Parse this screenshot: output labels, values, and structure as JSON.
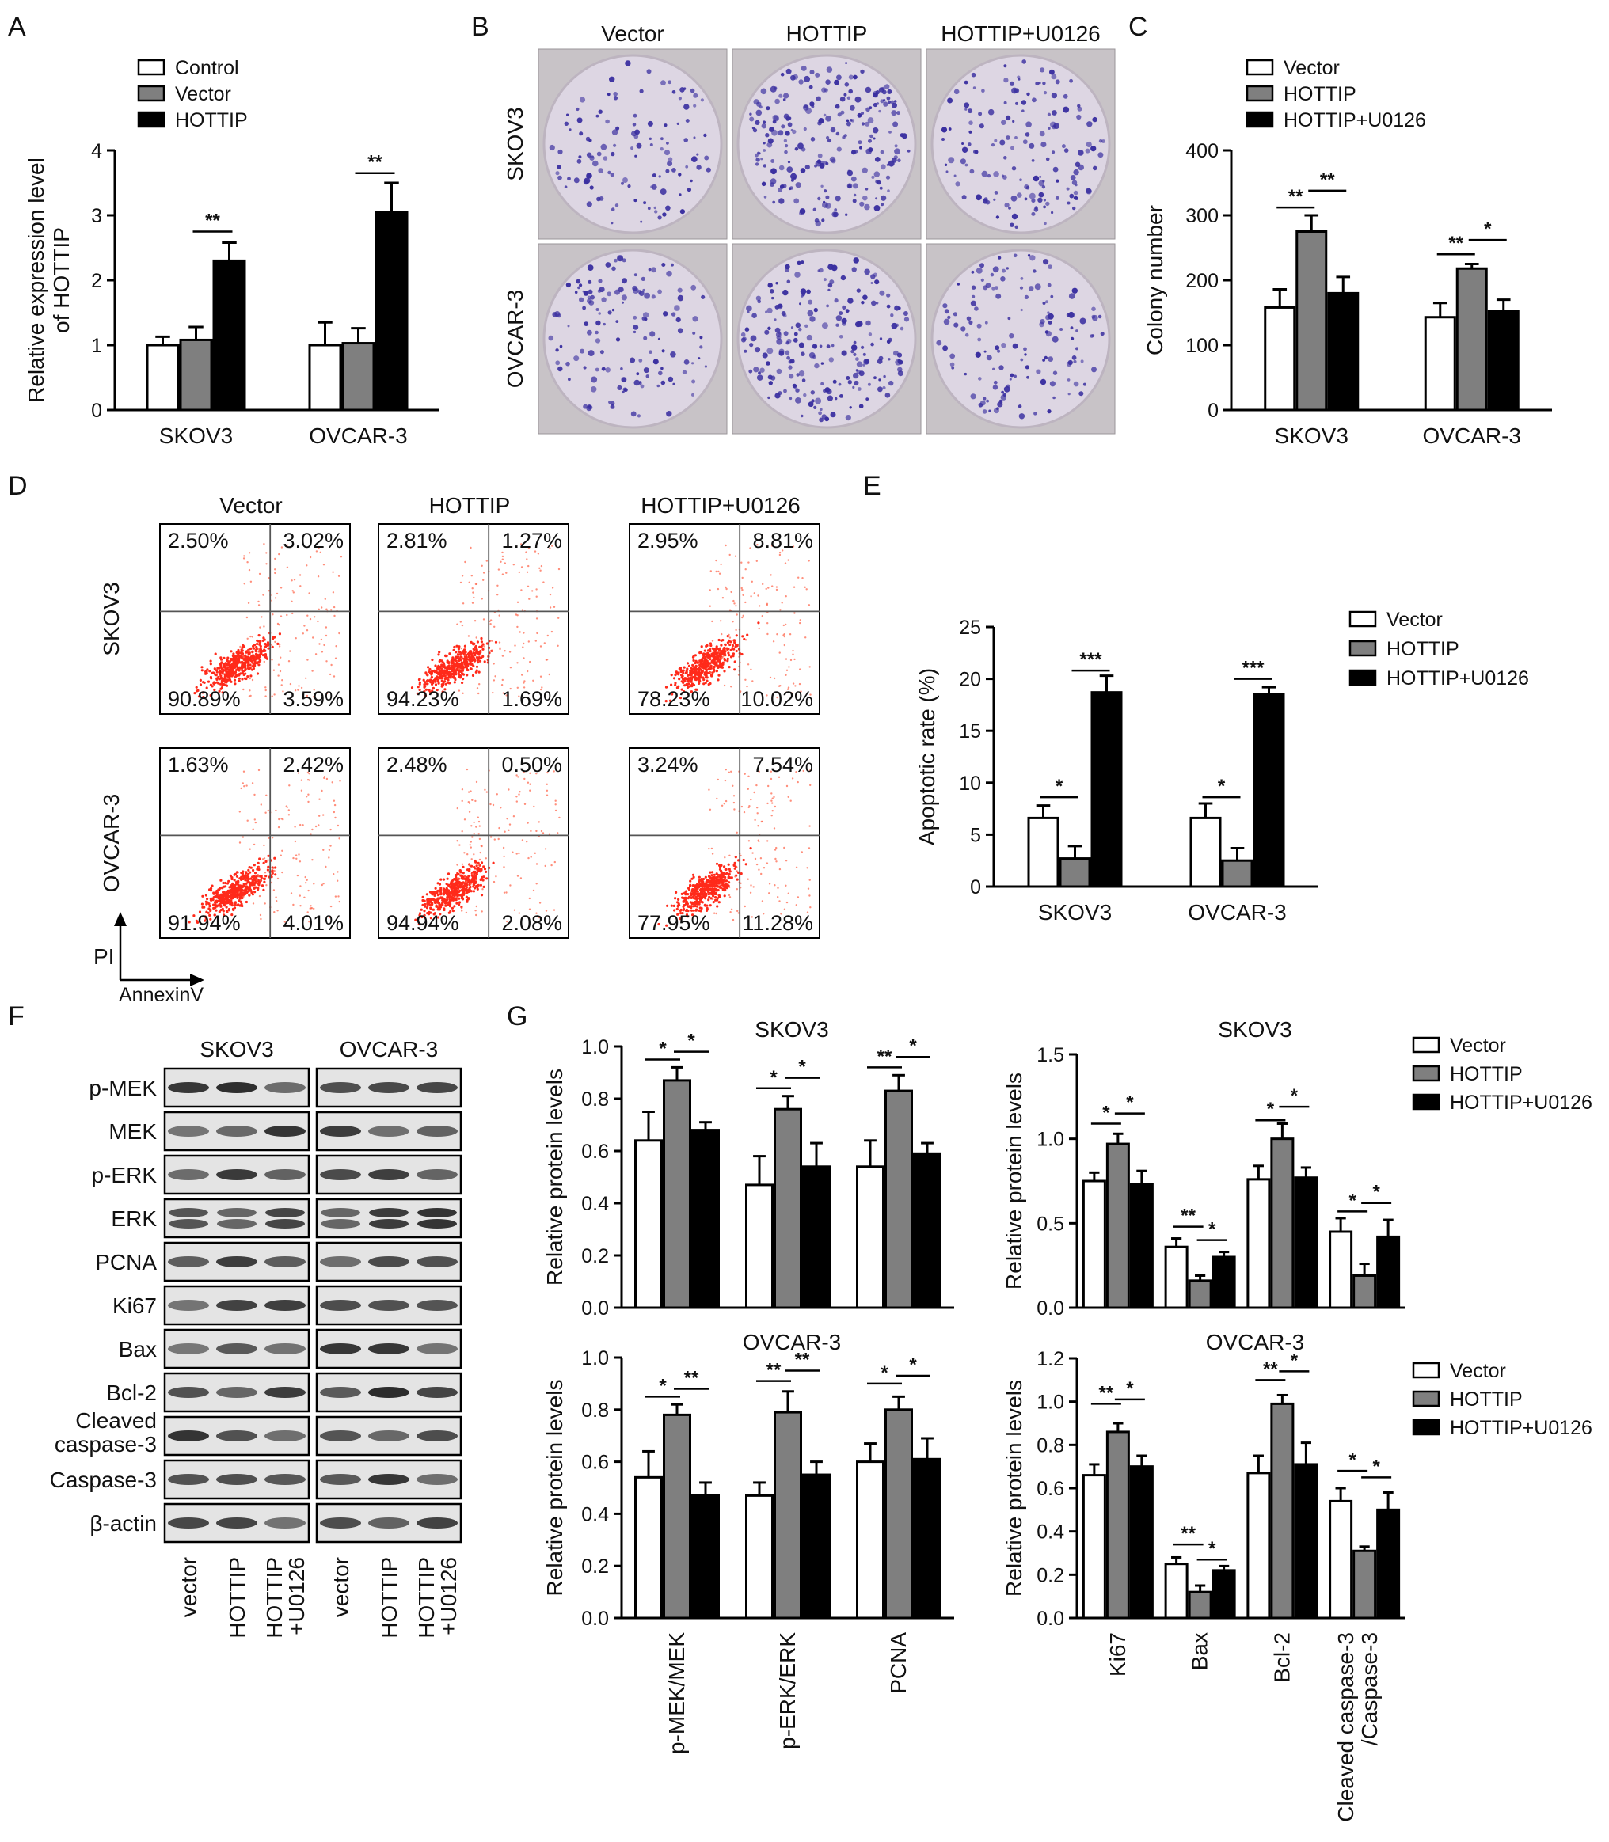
{
  "figure": {
    "panels": [
      "A",
      "B",
      "C",
      "D",
      "E",
      "F",
      "G"
    ],
    "colors": {
      "open": "#ffffff",
      "gray": "#7f7f7f",
      "black": "#000000",
      "dot_violet": "#3a2fa0",
      "flow_red": "#ff2a1a",
      "plate_bg": "#ddd6e3"
    }
  },
  "chart_data": [
    {
      "id": "A",
      "type": "bar",
      "ylabel": [
        "Relative expression level",
        "of HOTTIP"
      ],
      "ylim": [
        0,
        4
      ],
      "yticks": [
        0,
        1,
        2,
        3,
        4
      ],
      "grid": false,
      "legend_position": "top-left",
      "categories": [
        "SKOV3",
        "OVCAR-3"
      ],
      "series": [
        {
          "name": "Control",
          "color": "#ffffff",
          "values": [
            1.0,
            1.0
          ],
          "errors": [
            0.13,
            0.35
          ]
        },
        {
          "name": "Vector",
          "color": "#7f7f7f",
          "values": [
            1.08,
            1.03
          ],
          "errors": [
            0.2,
            0.23
          ]
        },
        {
          "name": "HOTTIP",
          "color": "#000000",
          "values": [
            2.3,
            3.05
          ],
          "errors": [
            0.28,
            0.45
          ]
        }
      ],
      "significance": [
        {
          "group": 0,
          "from": 1,
          "to": 2,
          "label": "**",
          "y": 2.75
        },
        {
          "group": 1,
          "from": 1,
          "to": 2,
          "label": "**",
          "y": 3.65
        }
      ]
    },
    {
      "id": "C",
      "type": "bar",
      "ylabel": [
        "Colony number"
      ],
      "ylim": [
        0,
        400
      ],
      "yticks": [
        0,
        100,
        200,
        300,
        400
      ],
      "grid": false,
      "legend_position": "top-left",
      "categories": [
        "SKOV3",
        "OVCAR-3"
      ],
      "series": [
        {
          "name": "Vector",
          "color": "#ffffff",
          "values": [
            158,
            143
          ],
          "errors": [
            28,
            22
          ]
        },
        {
          "name": "HOTTIP",
          "color": "#7f7f7f",
          "values": [
            275,
            218
          ],
          "errors": [
            25,
            7
          ]
        },
        {
          "name": "HOTTIP+U0126",
          "color": "#000000",
          "values": [
            180,
            153
          ],
          "errors": [
            25,
            17
          ]
        }
      ],
      "significance": [
        {
          "group": 0,
          "from": 0,
          "to": 1,
          "label": "**",
          "y": 312
        },
        {
          "group": 0,
          "from": 1,
          "to": 2,
          "label": "**",
          "y": 338
        },
        {
          "group": 1,
          "from": 0,
          "to": 1,
          "label": "**",
          "y": 240
        },
        {
          "group": 1,
          "from": 1,
          "to": 2,
          "label": "*",
          "y": 262
        }
      ]
    },
    {
      "id": "E",
      "type": "bar",
      "ylabel": [
        "Apoptotic rate (%)"
      ],
      "ylim": [
        0,
        25
      ],
      "yticks": [
        0,
        5,
        10,
        15,
        20,
        25
      ],
      "grid": false,
      "legend_position": "top-right",
      "categories": [
        "SKOV3",
        "OVCAR-3"
      ],
      "series": [
        {
          "name": "Vector",
          "color": "#ffffff",
          "values": [
            6.6,
            6.6
          ],
          "errors": [
            1.2,
            1.4
          ]
        },
        {
          "name": "HOTTIP",
          "color": "#7f7f7f",
          "values": [
            2.7,
            2.5
          ],
          "errors": [
            1.2,
            1.2
          ]
        },
        {
          "name": "HOTTIP+U0126",
          "color": "#000000",
          "values": [
            18.7,
            18.5
          ],
          "errors": [
            1.6,
            0.7
          ]
        }
      ],
      "significance": [
        {
          "group": 0,
          "from": 0,
          "to": 1,
          "label": "*",
          "y": 8.6
        },
        {
          "group": 0,
          "from": 1,
          "to": 2,
          "label": "***",
          "y": 20.8
        },
        {
          "group": 1,
          "from": 0,
          "to": 1,
          "label": "*",
          "y": 8.6
        },
        {
          "group": 1,
          "from": 1,
          "to": 2,
          "label": "***",
          "y": 20.0
        }
      ]
    },
    {
      "id": "G1",
      "type": "bar",
      "title": "SKOV3",
      "ylabel": [
        "Relative protein levels"
      ],
      "ylim": [
        0,
        1.0
      ],
      "yticks": [
        0.0,
        0.2,
        0.4,
        0.6,
        0.8,
        1.0
      ],
      "grid": false,
      "categories": [
        "p-MEK/MEK",
        "p-ERK/ERK",
        "PCNA"
      ],
      "series": [
        {
          "name": "Vector",
          "color": "#ffffff",
          "values": [
            0.64,
            0.47,
            0.54
          ],
          "errors": [
            0.11,
            0.11,
            0.1
          ]
        },
        {
          "name": "HOTTIP",
          "color": "#7f7f7f",
          "values": [
            0.87,
            0.76,
            0.83
          ],
          "errors": [
            0.05,
            0.05,
            0.06
          ]
        },
        {
          "name": "HOTTIP+U0126",
          "color": "#000000",
          "values": [
            0.68,
            0.54,
            0.59
          ],
          "errors": [
            0.03,
            0.09,
            0.04
          ]
        }
      ],
      "significance": [
        {
          "group": 0,
          "from": 0,
          "to": 1,
          "label": "*",
          "y": 0.95
        },
        {
          "group": 0,
          "from": 1,
          "to": 2,
          "label": "*",
          "y": 0.98
        },
        {
          "group": 1,
          "from": 0,
          "to": 1,
          "label": "*",
          "y": 0.84
        },
        {
          "group": 1,
          "from": 1,
          "to": 2,
          "label": "*",
          "y": 0.88
        },
        {
          "group": 2,
          "from": 0,
          "to": 1,
          "label": "**",
          "y": 0.92
        },
        {
          "group": 2,
          "from": 1,
          "to": 2,
          "label": "*",
          "y": 0.96
        }
      ]
    },
    {
      "id": "G2",
      "type": "bar",
      "title": "SKOV3",
      "ylabel": [
        "Relative protein levels"
      ],
      "ylim": [
        0,
        1.5
      ],
      "yticks": [
        0.0,
        0.5,
        1.0,
        1.5
      ],
      "grid": false,
      "legend_position": "right",
      "categories": [
        "Ki67",
        "Bax",
        "Bcl-2",
        "Cleaved caspase-3 /Caspase-3"
      ],
      "series": [
        {
          "name": "Vector",
          "color": "#ffffff",
          "values": [
            0.75,
            0.36,
            0.76,
            0.45
          ],
          "errors": [
            0.05,
            0.05,
            0.08,
            0.08
          ]
        },
        {
          "name": "HOTTIP",
          "color": "#7f7f7f",
          "values": [
            0.97,
            0.16,
            1.0,
            0.19
          ],
          "errors": [
            0.06,
            0.03,
            0.09,
            0.07
          ]
        },
        {
          "name": "HOTTIP+U0126",
          "color": "#000000",
          "values": [
            0.73,
            0.3,
            0.77,
            0.42
          ],
          "errors": [
            0.08,
            0.03,
            0.06,
            0.1
          ]
        }
      ],
      "significance": [
        {
          "group": 0,
          "from": 0,
          "to": 1,
          "label": "*",
          "y": 1.09
        },
        {
          "group": 0,
          "from": 1,
          "to": 2,
          "label": "*",
          "y": 1.15
        },
        {
          "group": 1,
          "from": 0,
          "to": 1,
          "label": "**",
          "y": 0.48
        },
        {
          "group": 1,
          "from": 1,
          "to": 2,
          "label": "*",
          "y": 0.4
        },
        {
          "group": 2,
          "from": 0,
          "to": 1,
          "label": "*",
          "y": 1.11
        },
        {
          "group": 2,
          "from": 1,
          "to": 2,
          "label": "*",
          "y": 1.19
        },
        {
          "group": 3,
          "from": 0,
          "to": 1,
          "label": "*",
          "y": 0.57
        },
        {
          "group": 3,
          "from": 1,
          "to": 2,
          "label": "*",
          "y": 0.62
        }
      ]
    },
    {
      "id": "G3",
      "type": "bar",
      "title": "OVCAR-3",
      "ylabel": [
        "Relative protein levels"
      ],
      "ylim": [
        0,
        1.0
      ],
      "yticks": [
        0.0,
        0.2,
        0.4,
        0.6,
        0.8,
        1.0
      ],
      "grid": false,
      "categories": [
        "p-MEK/MEK",
        "p-ERK/ERK",
        "PCNA"
      ],
      "series": [
        {
          "name": "Vector",
          "color": "#ffffff",
          "values": [
            0.54,
            0.47,
            0.6
          ],
          "errors": [
            0.1,
            0.05,
            0.07
          ]
        },
        {
          "name": "HOTTIP",
          "color": "#7f7f7f",
          "values": [
            0.78,
            0.79,
            0.8
          ],
          "errors": [
            0.04,
            0.08,
            0.05
          ]
        },
        {
          "name": "HOTTIP+U0126",
          "color": "#000000",
          "values": [
            0.47,
            0.55,
            0.61
          ],
          "errors": [
            0.05,
            0.05,
            0.08
          ]
        }
      ],
      "significance": [
        {
          "group": 0,
          "from": 0,
          "to": 1,
          "label": "*",
          "y": 0.85
        },
        {
          "group": 0,
          "from": 1,
          "to": 2,
          "label": "**",
          "y": 0.88
        },
        {
          "group": 1,
          "from": 0,
          "to": 1,
          "label": "**",
          "y": 0.91
        },
        {
          "group": 1,
          "from": 1,
          "to": 2,
          "label": "**",
          "y": 0.95
        },
        {
          "group": 2,
          "from": 0,
          "to": 1,
          "label": "*",
          "y": 0.9
        },
        {
          "group": 2,
          "from": 1,
          "to": 2,
          "label": "*",
          "y": 0.93
        }
      ]
    },
    {
      "id": "G4",
      "type": "bar",
      "title": "OVCAR-3",
      "ylabel": [
        "Relative protein levels"
      ],
      "ylim": [
        0,
        1.2
      ],
      "yticks": [
        0.0,
        0.2,
        0.4,
        0.6,
        0.8,
        1.0,
        1.2
      ],
      "grid": false,
      "legend_position": "right",
      "categories": [
        "Ki67",
        "Bax",
        "Bcl-2",
        "Cleaved caspase-3 /Caspase-3"
      ],
      "series": [
        {
          "name": "Vector",
          "color": "#ffffff",
          "values": [
            0.66,
            0.25,
            0.67,
            0.54
          ],
          "errors": [
            0.05,
            0.03,
            0.08,
            0.06
          ]
        },
        {
          "name": "HOTTIP",
          "color": "#7f7f7f",
          "values": [
            0.86,
            0.12,
            0.99,
            0.31
          ],
          "errors": [
            0.04,
            0.03,
            0.04,
            0.02
          ]
        },
        {
          "name": "HOTTIP+U0126",
          "color": "#000000",
          "values": [
            0.7,
            0.22,
            0.71,
            0.5
          ],
          "errors": [
            0.05,
            0.02,
            0.1,
            0.08
          ]
        }
      ],
      "significance": [
        {
          "group": 0,
          "from": 0,
          "to": 1,
          "label": "**",
          "y": 0.99
        },
        {
          "group": 0,
          "from": 1,
          "to": 2,
          "label": "*",
          "y": 1.01
        },
        {
          "group": 1,
          "from": 0,
          "to": 1,
          "label": "**",
          "y": 0.34
        },
        {
          "group": 1,
          "from": 1,
          "to": 2,
          "label": "*",
          "y": 0.27
        },
        {
          "group": 2,
          "from": 0,
          "to": 1,
          "label": "**",
          "y": 1.1
        },
        {
          "group": 2,
          "from": 1,
          "to": 2,
          "label": "*",
          "y": 1.14
        },
        {
          "group": 3,
          "from": 0,
          "to": 1,
          "label": "*",
          "y": 0.68
        },
        {
          "group": 3,
          "from": 1,
          "to": 2,
          "label": "*",
          "y": 0.65
        }
      ]
    }
  ],
  "panel_B": {
    "columns": [
      "Vector",
      "HOTTIP",
      "HOTTIP+U0126"
    ],
    "rows": [
      "SKOV3",
      "OVCAR-3"
    ],
    "colony_density": [
      [
        0.45,
        0.9,
        0.6
      ],
      [
        0.55,
        0.85,
        0.55
      ]
    ]
  },
  "panel_D": {
    "columns": [
      "Vector",
      "HOTTIP",
      "HOTTIP+U0126"
    ],
    "rows": [
      "SKOV3",
      "OVCAR-3"
    ],
    "quadrants": [
      [
        [
          "2.50%",
          "3.02%",
          "90.89%",
          "3.59%"
        ],
        [
          "2.81%",
          "1.27%",
          "94.23%",
          "1.69%"
        ],
        [
          "2.95%",
          "8.81%",
          "78.23%",
          "10.02%"
        ]
      ],
      [
        [
          "1.63%",
          "2.42%",
          "91.94%",
          "4.01%"
        ],
        [
          "2.48%",
          "0.50%",
          "94.94%",
          "2.08%"
        ],
        [
          "3.24%",
          "7.54%",
          "77.95%",
          "11.28%"
        ]
      ]
    ],
    "y_axis_label": "PI",
    "x_axis_label": "AnnexinV"
  },
  "panel_F": {
    "groups": [
      "SKOV3",
      "OVCAR-3"
    ],
    "proteins": [
      "p-MEK",
      "MEK",
      "p-ERK",
      "ERK",
      "PCNA",
      "Ki67",
      "Bax",
      "Bcl-2",
      "Cleaved caspase-3",
      "Caspase-3",
      "β-actin"
    ],
    "lanes": [
      "vector",
      "HOTTIP",
      "HOTTIP +U0126"
    ]
  }
}
